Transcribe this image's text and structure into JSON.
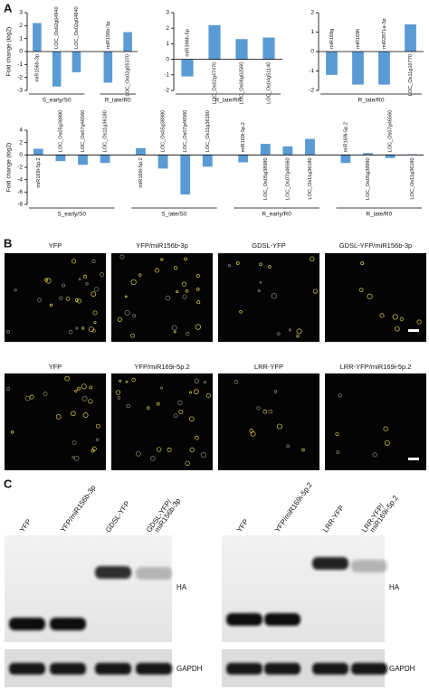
{
  "panel_labels": [
    "A",
    "B",
    "C"
  ],
  "chart_data": [
    {
      "type": "bar",
      "y_label": "Fold change (log2)",
      "color": "#5b9bd5",
      "ylim": [
        -3,
        3
      ],
      "yticks": [
        3,
        2,
        1,
        0,
        -1,
        -2,
        -3
      ],
      "groups": [
        {
          "label": "S_early/S0",
          "categories": [
            "miR156b-3p",
            "LOC_Os02g04940",
            "LOC_Os02g04840"
          ],
          "values": [
            2.2,
            -2.7,
            -1.6
          ]
        },
        {
          "label": "R_late/R0",
          "categories": [
            "miR156b-3p",
            "LOC_Os02g05370"
          ],
          "values": [
            -2.4,
            1.5
          ]
        }
      ]
    },
    {
      "type": "bar",
      "color": "#5b9bd5",
      "ylim": [
        -2,
        3
      ],
      "yticks": [
        3,
        2,
        1,
        0,
        -1,
        -2
      ],
      "groups": [
        {
          "label": "R_late/R0",
          "categories": [
            "miR396h-5p",
            "LOC_Os02g47470",
            "LOC_Os06g02560",
            "LOC_Os04g51140"
          ],
          "values": [
            -1.1,
            2.2,
            1.3,
            1.4
          ]
        }
      ]
    },
    {
      "type": "bar",
      "color": "#5b9bd5",
      "ylim": [
        -2,
        2
      ],
      "yticks": [
        2,
        1,
        0,
        -1,
        -2
      ],
      "groups": [
        {
          "label": "R_late/R0",
          "categories": [
            "miR169g",
            "miR169h",
            "miR2871a-3p",
            "LOC_Os11g10770"
          ],
          "values": [
            -1.2,
            -1.7,
            -1.7,
            1.4
          ]
        }
      ]
    },
    {
      "type": "bar",
      "y_label": "Fold change (log2)",
      "color": "#5b9bd5",
      "ylim": [
        -8,
        4
      ],
      "yticks": [
        4,
        2,
        0,
        -2,
        -4,
        -6,
        -8
      ],
      "groups": [
        {
          "label": "S_early/S0",
          "categories": [
            "miR169i-5p.2",
            "LOC_Os05g38980",
            "LOC_Os07g46560",
            "LOC_Os11g36180"
          ],
          "values": [
            1.0,
            -1.0,
            -1.6,
            -1.3
          ]
        },
        {
          "label": "S_late/S0",
          "categories": [
            "miR169i-5p.2",
            "LOC_Os05g38980",
            "LOC_Os07g46560",
            "LOC_Os11g36180"
          ],
          "values": [
            1.1,
            -2.2,
            -6.4,
            -1.9
          ]
        },
        {
          "label": "R_early/R0",
          "categories": [
            "miR169i-5p.2",
            "LOC_Os05g38980",
            "LOC_Os07g46560",
            "LOC_Os11g36180"
          ],
          "values": [
            -1.2,
            1.8,
            1.4,
            2.6
          ]
        },
        {
          "label": "R_late/R0",
          "categories": [
            "miR169i-5p.2",
            "LOC_Os05g38980",
            "LOC_Os07g46560",
            "LOC_Os11g36180"
          ],
          "values": [
            -1.3,
            0.3,
            -0.5,
            0.1
          ]
        }
      ]
    }
  ],
  "panel_b": {
    "rows": [
      {
        "labels": [
          "YFP",
          "YFP/miR156b-3p",
          "GDSL-YFP",
          "GDSL-YFP/miR156b-3p"
        ]
      },
      {
        "labels": [
          "YFP",
          "YFP/miR169i-5p.2",
          "LRR-YFP",
          "LRR-YFP/miR169i-5p.2"
        ]
      }
    ]
  },
  "panel_c": {
    "blots": [
      {
        "lanes": [
          [
            "YFP"
          ],
          [
            "YFP/miR156b-3p"
          ],
          [
            "GDSL-YFP"
          ],
          [
            "GDSL-YFP/",
            "miR156b-3p"
          ]
        ],
        "labels": [
          "HA",
          "GAPDH"
        ]
      },
      {
        "lanes": [
          [
            "YFP"
          ],
          [
            "YFP/miR169i-5p.2"
          ],
          [
            "LRR-YFP"
          ],
          [
            "LRR-YFP/",
            "miR169i-5p.2"
          ]
        ],
        "labels": [
          "HA",
          "GAPDH"
        ]
      }
    ]
  }
}
